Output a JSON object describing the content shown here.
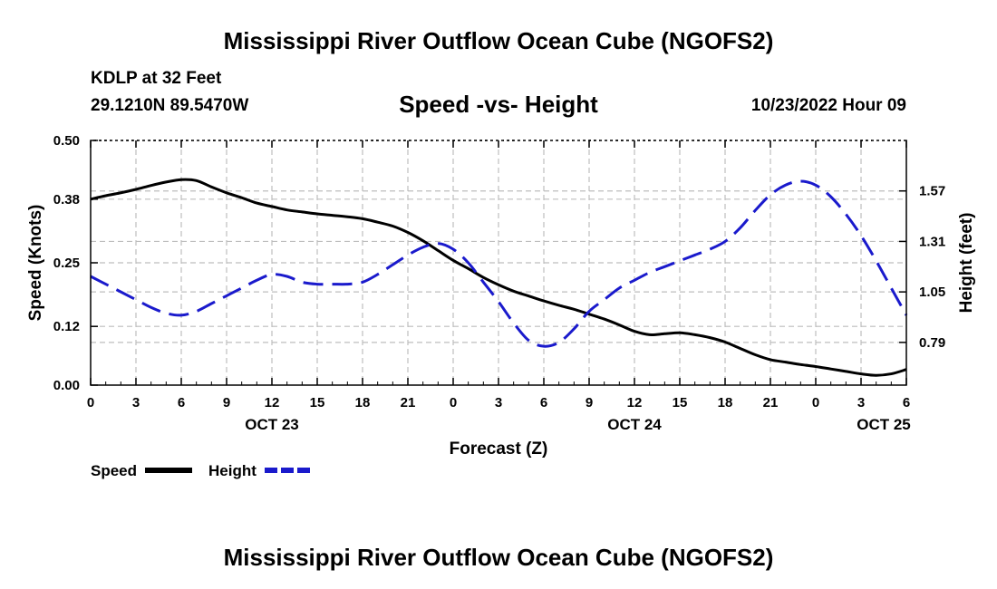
{
  "header": {
    "title": "Mississippi River Outflow Ocean Cube (NGOFS2)",
    "station": "KDLP at 32 Feet",
    "coords": "29.1210N  89.5470W",
    "subtitle": "Speed -vs- Height",
    "datetime": "10/23/2022 Hour 09"
  },
  "footer": {
    "title": "Mississippi River Outflow Ocean Cube (NGOFS2)"
  },
  "colors": {
    "speed": "#000000",
    "height": "#1a1acc",
    "grid": "#bdbdbd"
  },
  "chart_data": {
    "type": "line",
    "xlabel": "Forecast (Z)",
    "ylabel": "Speed (Knots)",
    "y2label": "Height (feet)",
    "xlim": [
      0,
      54
    ],
    "xticks": [
      0,
      3,
      6,
      9,
      12,
      15,
      18,
      21,
      24,
      27,
      30,
      33,
      36,
      39,
      42,
      45,
      48,
      51,
      54
    ],
    "xtick_labels": [
      "0",
      "3",
      "6",
      "9",
      "12",
      "15",
      "18",
      "21",
      "0",
      "3",
      "6",
      "9",
      "12",
      "15",
      "18",
      "21",
      "0",
      "3",
      "6"
    ],
    "date_labels": [
      {
        "hour": 12,
        "label": "OCT 23"
      },
      {
        "hour": 36,
        "label": "OCT 24"
      },
      {
        "hour": 52.5,
        "label": "OCT 25"
      }
    ],
    "ylim": [
      0,
      0.5
    ],
    "yticks": [
      0,
      0.12,
      0.25,
      0.38,
      0.5
    ],
    "ytick_labels": [
      "0.00",
      "0.12",
      "0.25",
      "0.38",
      "0.50"
    ],
    "y2lim": [
      0.57,
      1.83
    ],
    "y2ticks": [
      0.79,
      1.05,
      1.31,
      1.57
    ],
    "y2tick_labels": [
      "0.79",
      "1.05",
      "1.31",
      "1.57"
    ],
    "x": [
      0,
      1,
      2,
      3,
      4,
      5,
      6,
      7,
      8,
      9,
      10,
      11,
      12,
      13,
      14,
      15,
      16,
      17,
      18,
      19,
      20,
      21,
      22,
      23,
      24,
      25,
      26,
      27,
      28,
      29,
      30,
      31,
      32,
      33,
      34,
      35,
      36,
      37,
      38,
      39,
      40,
      41,
      42,
      43,
      44,
      45,
      46,
      47,
      48,
      49,
      50,
      51,
      52,
      53,
      54
    ],
    "series": [
      {
        "name": "Speed",
        "axis": "left",
        "style": "solid",
        "values": [
          0.38,
          0.387,
          0.393,
          0.4,
          0.408,
          0.415,
          0.42,
          0.418,
          0.405,
          0.393,
          0.383,
          0.372,
          0.365,
          0.358,
          0.354,
          0.35,
          0.347,
          0.344,
          0.34,
          0.333,
          0.325,
          0.312,
          0.295,
          0.275,
          0.255,
          0.238,
          0.22,
          0.205,
          0.192,
          0.182,
          0.172,
          0.163,
          0.155,
          0.145,
          0.135,
          0.123,
          0.11,
          0.103,
          0.105,
          0.107,
          0.103,
          0.097,
          0.088,
          0.075,
          0.062,
          0.052,
          0.047,
          0.042,
          0.038,
          0.033,
          0.028,
          0.023,
          0.02,
          0.023,
          0.032
        ]
      },
      {
        "name": "Height",
        "axis": "right",
        "style": "dashed",
        "values": [
          1.13,
          1.09,
          1.05,
          1.01,
          0.97,
          0.94,
          0.93,
          0.95,
          0.99,
          1.03,
          1.07,
          1.11,
          1.14,
          1.13,
          1.1,
          1.09,
          1.09,
          1.09,
          1.1,
          1.14,
          1.19,
          1.24,
          1.28,
          1.3,
          1.27,
          1.2,
          1.1,
          1.0,
          0.89,
          0.8,
          0.77,
          0.79,
          0.86,
          0.95,
          1.01,
          1.07,
          1.11,
          1.15,
          1.18,
          1.21,
          1.24,
          1.27,
          1.31,
          1.38,
          1.47,
          1.55,
          1.6,
          1.62,
          1.6,
          1.54,
          1.45,
          1.34,
          1.21,
          1.07,
          0.93
        ]
      }
    ]
  },
  "legend": [
    {
      "label": "Speed",
      "series": "Speed"
    },
    {
      "label": "Height",
      "series": "Height"
    }
  ]
}
